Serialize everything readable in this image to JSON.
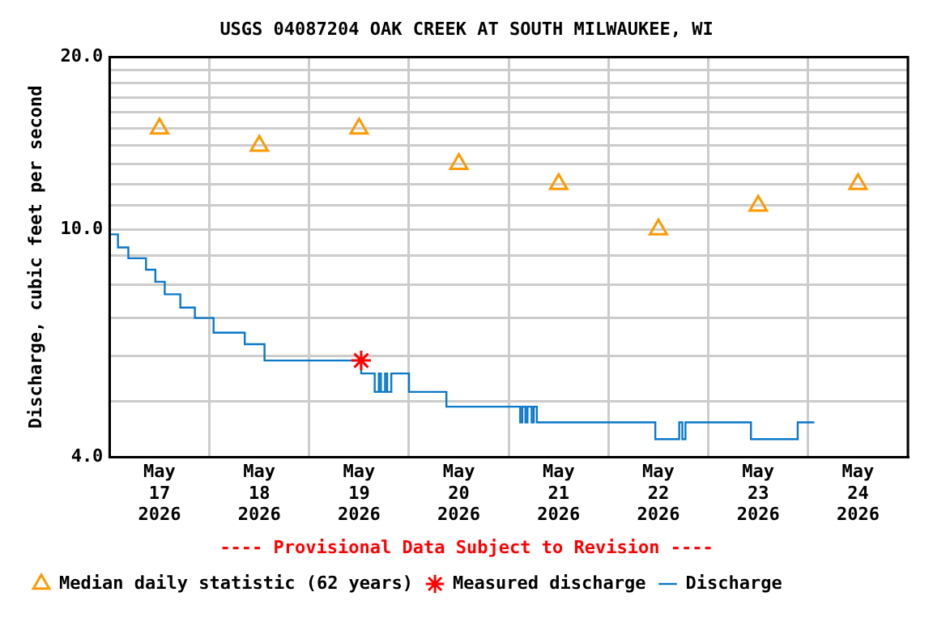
{
  "chart_data": {
    "type": "step",
    "title": "USGS 04087204 OAK CREEK AT SOUTH MILWAUKEE, WI",
    "ylabel": "Discharge, cubic feet per second",
    "annotations": [
      "---- Provisional Data Subject to Revision ----"
    ],
    "log": "y",
    "grid": true,
    "legend": "bottom",
    "xlim": [
      "2026-05-17T00:00",
      "2026-05-25T00:00"
    ],
    "xticks": [
      {
        "value": "2026-05-17T00:00",
        "label": null
      },
      {
        "value": "2026-05-17T12:00",
        "label": "May 17 2026"
      },
      {
        "value": "2026-05-18T00:00",
        "label": null
      },
      {
        "value": "2026-05-18T12:00",
        "label": "May 18 2026"
      },
      {
        "value": "2026-05-19T00:00",
        "label": null
      },
      {
        "value": "2026-05-19T12:00",
        "label": "May 19 2026"
      },
      {
        "value": "2026-05-20T00:00",
        "label": null
      },
      {
        "value": "2026-05-20T12:00",
        "label": "May 20 2026"
      },
      {
        "value": "2026-05-21T00:00",
        "label": null
      },
      {
        "value": "2026-05-21T12:00",
        "label": "May 21 2026"
      },
      {
        "value": "2026-05-22T00:00",
        "label": null
      },
      {
        "value": "2026-05-22T12:00",
        "label": "May 22 2026"
      },
      {
        "value": "2026-05-23T00:00",
        "label": null
      },
      {
        "value": "2026-05-23T12:00",
        "label": "May 23 2026"
      },
      {
        "value": "2026-05-24T00:00",
        "label": null
      },
      {
        "value": "2026-05-24T12:00",
        "label": "May 24 2026"
      },
      {
        "value": "2026-05-25T00:00",
        "label": null
      }
    ],
    "ylim": [
      4,
      20
    ],
    "yticks": [
      {
        "value": 4,
        "label": "4.0"
      },
      {
        "value": 5,
        "label": null
      },
      {
        "value": 6,
        "label": null
      },
      {
        "value": 7,
        "label": null
      },
      {
        "value": 8,
        "label": null
      },
      {
        "value": 9,
        "label": null
      },
      {
        "value": 10,
        "label": "10.0"
      },
      {
        "value": 11,
        "label": null
      },
      {
        "value": 12,
        "label": null
      },
      {
        "value": 13,
        "label": null
      },
      {
        "value": 14,
        "label": null
      },
      {
        "value": 15,
        "label": null
      },
      {
        "value": 16,
        "label": null
      },
      {
        "value": 17,
        "label": null
      },
      {
        "value": 18,
        "label": null
      },
      {
        "value": 19,
        "label": null
      },
      {
        "value": 20,
        "label": "20.0"
      }
    ],
    "series": [
      {
        "name": "Median daily statistic (62 years)",
        "type": "scatter",
        "marker": "triangle",
        "color": "#ff9900",
        "x": [
          "2026-05-17T12:00",
          "2026-05-18T12:00",
          "2026-05-19T12:00",
          "2026-05-20T12:00",
          "2026-05-21T12:00",
          "2026-05-22T12:00",
          "2026-05-23T12:00",
          "2026-05-24T12:00"
        ],
        "values": [
          15,
          14,
          15,
          13,
          12,
          10,
          11,
          12
        ]
      },
      {
        "name": "Measured discharge",
        "type": "scatter",
        "marker": "cross",
        "color": "#ff0000",
        "x": [
          "2026-05-19T12:30"
        ],
        "values": [
          5.9
        ]
      },
      {
        "name": "Discharge",
        "marker": "none",
        "color": "#0a78c8",
        "x": [
          "2026-05-17T00:00",
          "2026-05-17T02:00",
          "2026-05-17T04:30",
          "2026-05-17T08:45",
          "2026-05-17T11:00",
          "2026-05-17T13:15",
          "2026-05-17T17:00",
          "2026-05-17T20:30",
          "2026-05-18T01:00",
          "2026-05-18T08:30",
          "2026-05-18T13:15",
          "2026-05-19T12:30",
          "2026-05-19T15:45",
          "2026-05-19T16:45",
          "2026-05-19T17:15",
          "2026-05-19T18:15",
          "2026-05-19T18:45",
          "2026-05-19T19:45",
          "2026-05-20T00:00",
          "2026-05-20T09:00",
          "2026-05-21T02:45",
          "2026-05-21T03:15",
          "2026-05-21T04:00",
          "2026-05-21T04:30",
          "2026-05-21T05:30",
          "2026-05-21T06:00",
          "2026-05-21T06:45",
          "2026-05-22T11:15",
          "2026-05-22T17:00",
          "2026-05-22T17:45",
          "2026-05-22T18:30",
          "2026-05-23T10:15",
          "2026-05-23T21:30",
          "2026-05-24T01:30"
        ],
        "values": [
          9.8,
          9.3,
          8.9,
          8.5,
          8.1,
          7.7,
          7.3,
          7.0,
          6.6,
          6.3,
          5.9,
          5.6,
          5.2,
          5.6,
          5.2,
          5.6,
          5.2,
          5.6,
          5.2,
          4.9,
          4.6,
          4.9,
          4.6,
          4.9,
          4.6,
          4.9,
          4.6,
          4.3,
          4.6,
          4.3,
          4.6,
          4.3,
          4.6,
          4.6
        ]
      }
    ]
  }
}
